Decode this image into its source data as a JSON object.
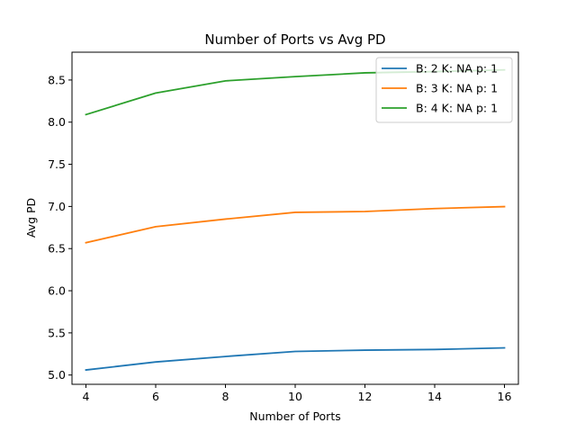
{
  "chart_data": {
    "type": "line",
    "title": "Number of Ports vs Avg PD",
    "xlabel": "Number of Ports",
    "ylabel": "Avg PD",
    "xlim": [
      3.6,
      16.4
    ],
    "ylim": [
      4.89,
      8.83
    ],
    "x_ticks": [
      4,
      6,
      8,
      10,
      12,
      14,
      16
    ],
    "y_ticks": [
      5.0,
      5.5,
      6.0,
      6.5,
      7.0,
      7.5,
      8.0,
      8.5
    ],
    "grid": false,
    "legend_position": "top-right",
    "x": [
      4,
      6,
      8,
      10,
      12,
      14,
      16
    ],
    "series": [
      {
        "name": "B: 2 K: NA p: 1",
        "color": "#1f77b4",
        "values": [
          5.06,
          5.155,
          5.22,
          5.28,
          5.295,
          5.303,
          5.322
        ]
      },
      {
        "name": "B: 3 K: NA p: 1",
        "color": "#ff7f0e",
        "values": [
          6.57,
          6.76,
          6.85,
          6.93,
          6.94,
          6.975,
          6.998
        ]
      },
      {
        "name": "B: 4 K: NA p: 1",
        "color": "#2ca02c",
        "values": [
          8.09,
          8.345,
          8.49,
          8.54,
          8.585,
          8.6,
          8.62
        ]
      }
    ]
  }
}
